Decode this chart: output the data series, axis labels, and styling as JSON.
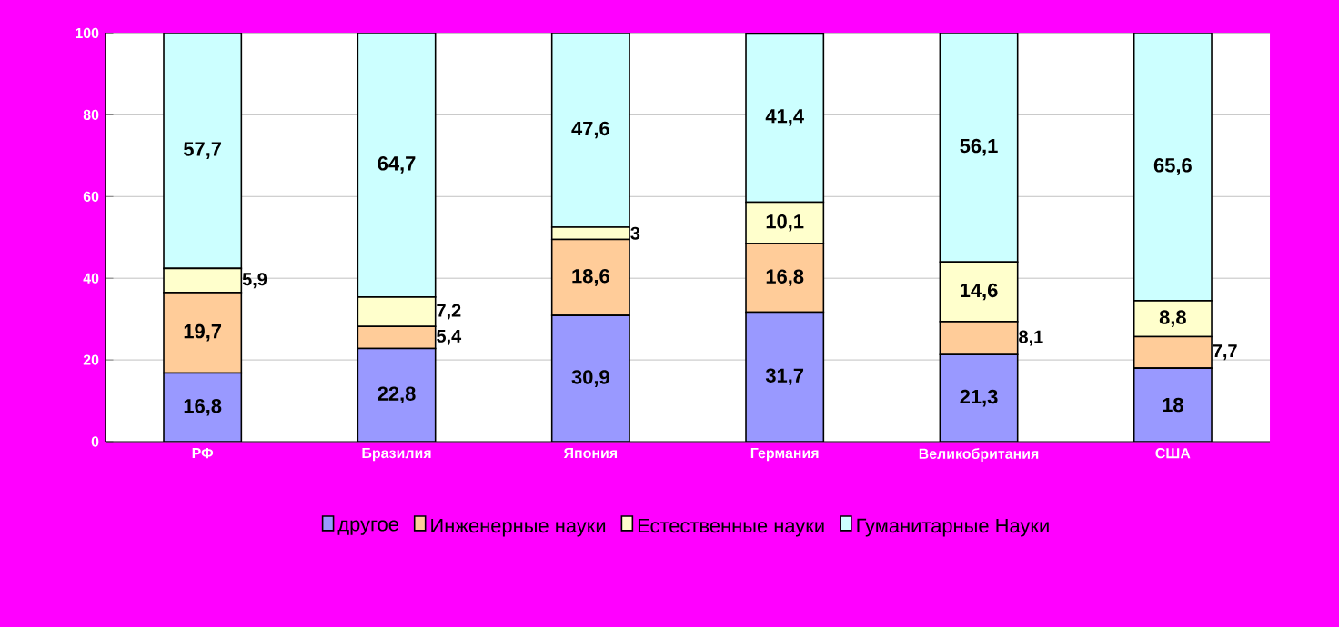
{
  "chart_data": {
    "type": "bar",
    "stacked": true,
    "categories": [
      "РФ",
      "Бразилия",
      "Япония",
      "Германия",
      "Великобритания",
      "США"
    ],
    "series": [
      {
        "name": "другое",
        "color": "#9999ff",
        "values": [
          16.8,
          22.8,
          30.9,
          31.7,
          21.3,
          18
        ],
        "value_labels": [
          "16,8",
          "22,8",
          "30,9",
          "31,7",
          "21,3",
          "18"
        ]
      },
      {
        "name": "Инженерные науки",
        "color": "#ffcc99",
        "values": [
          19.7,
          5.4,
          18.6,
          16.8,
          8.1,
          7.7
        ],
        "value_labels": [
          "19,7",
          "5,4",
          "18,6",
          "16,8",
          "8,1",
          "7,7"
        ]
      },
      {
        "name": "Естественные  науки",
        "color": "#ffffcc",
        "values": [
          5.9,
          7.2,
          3,
          10.1,
          14.6,
          8.8
        ],
        "value_labels": [
          "5,9",
          "7,2",
          "3",
          "10,1",
          "14,6",
          "8,8"
        ]
      },
      {
        "name": "Гуманитарные Науки",
        "color": "#ccffff",
        "values": [
          57.7,
          64.7,
          47.6,
          41.4,
          56.1,
          65.6
        ],
        "value_labels": [
          "57,7",
          "64,7",
          "47,6",
          "41,4",
          "56,1",
          "65,6"
        ]
      }
    ],
    "ylim": [
      0,
      100.1
    ],
    "yticks": [
      0,
      20,
      40,
      60,
      80,
      100
    ],
    "grid": "y",
    "legend": "bottom"
  }
}
